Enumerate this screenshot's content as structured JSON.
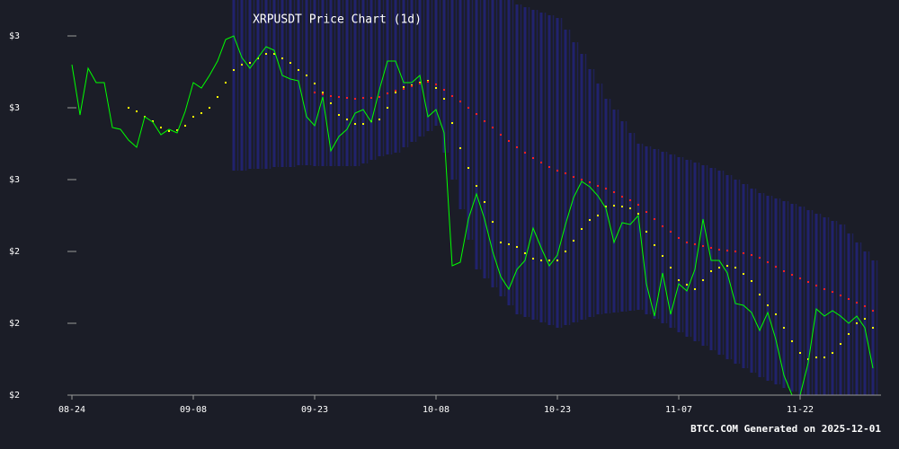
{
  "chart_data": {
    "type": "line",
    "title": "XRPUSDT Price Chart (1d)",
    "footer": "BTCC.COM Generated on 2025-12-01",
    "categories": [
      "08-24",
      "08-25",
      "08-26",
      "08-27",
      "08-28",
      "08-29",
      "08-30",
      "08-31",
      "09-01",
      "09-02",
      "09-03",
      "09-04",
      "09-05",
      "09-06",
      "09-07",
      "09-08",
      "09-09",
      "09-10",
      "09-11",
      "09-12",
      "09-13",
      "09-14",
      "09-15",
      "09-16",
      "09-17",
      "09-18",
      "09-19",
      "09-20",
      "09-21",
      "09-22",
      "09-23",
      "09-24",
      "09-25",
      "09-26",
      "09-27",
      "09-28",
      "09-29",
      "09-30",
      "10-01",
      "10-02",
      "10-03",
      "10-04",
      "10-05",
      "10-06",
      "10-07",
      "10-08",
      "10-09",
      "10-10",
      "10-11",
      "10-12",
      "10-13",
      "10-14",
      "10-15",
      "10-16",
      "10-17",
      "10-18",
      "10-19",
      "10-20",
      "10-21",
      "10-22",
      "10-23",
      "10-24",
      "10-25",
      "10-26",
      "10-27",
      "10-28",
      "10-29",
      "10-30",
      "10-31",
      "11-01",
      "11-02",
      "11-03",
      "11-04",
      "11-05",
      "11-06",
      "11-07",
      "11-08",
      "11-09",
      "11-10",
      "11-11",
      "11-12",
      "11-13",
      "11-14",
      "11-15",
      "11-16",
      "11-17",
      "11-18",
      "11-19",
      "11-20",
      "11-21",
      "11-22",
      "11-23",
      "11-24",
      "11-25",
      "11-26",
      "11-27",
      "11-28",
      "11-29",
      "11-30",
      "12-01"
    ],
    "xticks": [
      "08-24",
      "09-08",
      "09-23",
      "10-08",
      "10-23",
      "11-07",
      "11-22"
    ],
    "ylim": [
      2.0,
      3.1
    ],
    "yticks": [
      {
        "value": 2.0,
        "label": "$2"
      },
      {
        "value": 2.2,
        "label": "$2"
      },
      {
        "value": 2.4,
        "label": "$2"
      },
      {
        "value": 2.6,
        "label": "$3"
      },
      {
        "value": 2.8,
        "label": "$3"
      },
      {
        "value": 3.0,
        "label": "$3"
      }
    ],
    "bands": {
      "color": "#23237a",
      "upper": [
        null,
        null,
        null,
        null,
        null,
        null,
        null,
        null,
        null,
        null,
        null,
        null,
        null,
        null,
        null,
        null,
        null,
        null,
        null,
        null,
        3.1,
        3.1,
        3.1,
        3.1,
        3.1,
        3.1,
        3.1,
        3.1,
        3.1,
        3.1,
        3.1,
        3.1,
        3.1,
        3.1,
        3.1,
        3.1,
        3.1,
        3.1,
        3.1,
        3.1,
        3.1,
        3.1,
        3.1,
        3.1,
        3.1,
        3.1,
        3.1,
        3.1,
        3.1,
        3.1,
        3.1,
        3.1,
        3.1,
        3.1,
        3.1,
        3.0875,
        3.08,
        3.0725,
        3.065,
        3.0575,
        3.05,
        3.0175,
        2.9825,
        2.95,
        2.9075,
        2.8675,
        2.825,
        2.795,
        2.7625,
        2.73,
        2.7,
        2.6925,
        2.685,
        2.6775,
        2.67,
        2.6625,
        2.655,
        2.6475,
        2.64,
        2.6325,
        2.625,
        2.6125,
        2.6,
        2.5875,
        2.575,
        2.5625,
        2.555,
        2.5475,
        2.54,
        2.5325,
        2.525,
        2.515,
        2.505,
        2.495,
        2.485,
        2.475,
        2.45,
        2.425,
        2.4,
        2.375
      ],
      "lower": [
        null,
        null,
        null,
        null,
        null,
        null,
        null,
        null,
        null,
        null,
        null,
        null,
        null,
        null,
        null,
        null,
        null,
        null,
        null,
        null,
        2.625,
        2.625,
        2.63,
        2.63,
        2.63,
        2.635,
        2.635,
        2.635,
        2.64,
        2.64,
        2.6375,
        2.6375,
        2.6375,
        2.6375,
        2.6375,
        2.6375,
        2.645,
        2.655,
        2.665,
        2.67,
        2.675,
        2.69,
        2.705,
        2.72,
        2.735,
        2.75,
        2.675,
        2.6,
        2.5175,
        2.4325,
        2.35,
        2.325,
        2.3,
        2.275,
        2.25,
        2.225,
        2.2175,
        2.21,
        2.2025,
        2.195,
        2.1875,
        2.195,
        2.2025,
        2.21,
        2.2175,
        2.225,
        2.2275,
        2.23,
        2.2325,
        2.235,
        2.2375,
        2.225,
        2.2125,
        2.2,
        2.1875,
        2.175,
        2.1625,
        2.15,
        2.1375,
        2.125,
        2.1125,
        2.1,
        2.0875,
        2.075,
        2.0625,
        2.05,
        2.04,
        2.03,
        2.02,
        2.01,
        2.0,
        2.0,
        2.0,
        2.0,
        2.0,
        2.0,
        2.0,
        2.0,
        2.0,
        2.0
      ]
    },
    "series": [
      {
        "color": "#00ff00",
        "style": "line",
        "values": [
          2.92,
          2.78,
          2.91,
          2.87,
          2.87,
          2.745,
          2.74,
          2.71,
          2.69,
          2.775,
          2.76,
          2.725,
          2.74,
          2.73,
          2.79,
          2.87,
          2.855,
          2.89,
          2.93,
          2.99,
          3.0,
          2.94,
          2.91,
          2.94,
          2.97,
          2.96,
          2.89,
          2.88,
          2.875,
          2.775,
          2.75,
          2.83,
          2.68,
          2.72,
          2.74,
          2.785,
          2.795,
          2.76,
          2.85,
          2.93,
          2.93,
          2.87,
          2.87,
          2.89,
          2.775,
          2.795,
          2.73,
          2.36,
          2.37,
          2.49,
          2.56,
          2.49,
          2.4,
          2.33,
          2.295,
          2.35,
          2.375,
          2.465,
          2.41,
          2.36,
          2.39,
          2.475,
          2.55,
          2.595,
          2.58,
          2.555,
          2.52,
          2.425,
          2.48,
          2.475,
          2.5,
          2.31,
          2.22,
          2.34,
          2.225,
          2.31,
          2.29,
          2.35,
          2.49,
          2.375,
          2.375,
          2.34,
          2.255,
          2.25,
          2.23,
          2.18,
          2.23,
          2.155,
          2.055,
          2.0,
          2.0,
          2.09,
          2.24,
          2.22,
          2.235,
          2.22,
          2.2,
          2.22,
          2.1875,
          2.075
        ]
      },
      {
        "color": "#ffff00",
        "style": "dots",
        "values": [
          null,
          null,
          null,
          null,
          null,
          null,
          null,
          2.8,
          2.79,
          2.775,
          2.7625,
          2.745,
          2.735,
          2.7375,
          2.75,
          2.775,
          2.785,
          2.8,
          2.83,
          2.87,
          2.905,
          2.92,
          2.925,
          2.9375,
          2.95,
          2.95,
          2.9375,
          2.925,
          2.905,
          2.89,
          2.8675,
          2.8425,
          2.8125,
          2.78,
          2.7675,
          2.755,
          2.755,
          2.7625,
          2.7675,
          2.8,
          2.8425,
          2.8575,
          2.8625,
          2.87,
          2.875,
          2.855,
          2.825,
          2.7575,
          2.6875,
          2.6325,
          2.5825,
          2.5375,
          2.4825,
          2.425,
          2.42,
          2.4125,
          2.395,
          2.38,
          2.375,
          2.375,
          2.375,
          2.4,
          2.43,
          2.4625,
          2.4875,
          2.5,
          2.525,
          2.5275,
          2.525,
          2.52,
          2.505,
          2.455,
          2.4175,
          2.3875,
          2.355,
          2.32,
          2.3075,
          2.295,
          2.32,
          2.345,
          2.355,
          2.36,
          2.355,
          2.3375,
          2.3175,
          2.28,
          2.25,
          2.225,
          2.1875,
          2.15,
          2.1175,
          2.1,
          2.105,
          2.105,
          2.1175,
          2.1425,
          2.17,
          2.2,
          2.2125,
          2.1875
        ]
      },
      {
        "color": "#ff2020",
        "style": "dots",
        "values": [
          null,
          null,
          null,
          null,
          null,
          null,
          null,
          null,
          null,
          null,
          null,
          null,
          null,
          null,
          null,
          null,
          null,
          null,
          null,
          null,
          null,
          null,
          null,
          null,
          null,
          null,
          null,
          null,
          null,
          null,
          2.8425,
          2.8375,
          2.8325,
          2.83,
          2.8275,
          2.825,
          2.8275,
          2.8275,
          2.83,
          2.84,
          2.8475,
          2.8525,
          2.86,
          2.8675,
          2.8725,
          2.865,
          2.85,
          2.8325,
          2.8175,
          2.8,
          2.7825,
          2.7625,
          2.745,
          2.725,
          2.7075,
          2.69,
          2.675,
          2.66,
          2.6475,
          2.635,
          2.625,
          2.6175,
          2.6075,
          2.6,
          2.5925,
          2.5825,
          2.575,
          2.565,
          2.5525,
          2.5425,
          2.53,
          2.51,
          2.49,
          2.47,
          2.455,
          2.4375,
          2.425,
          2.42,
          2.415,
          2.41,
          2.405,
          2.4025,
          2.4,
          2.395,
          2.39,
          2.3825,
          2.37,
          2.3575,
          2.345,
          2.335,
          2.325,
          2.315,
          2.305,
          2.295,
          2.2875,
          2.2775,
          2.2675,
          2.2575,
          2.2475,
          2.235
        ]
      }
    ]
  }
}
